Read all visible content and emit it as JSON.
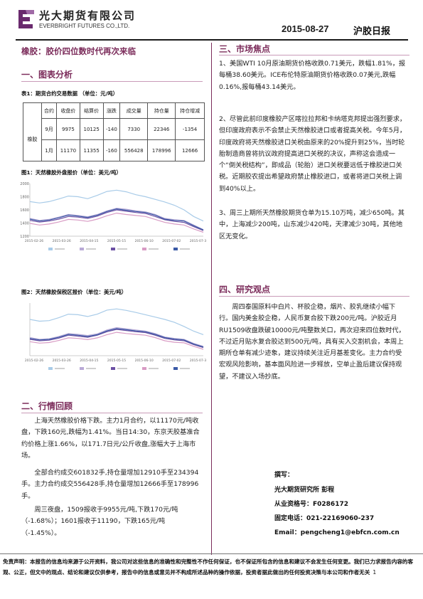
{
  "header": {
    "company_cn": "光大期货有限公司",
    "company_en": "EVERBRIGHT FUTURES CO.,LTD.",
    "date": "2015-08-27",
    "report_title": "沪胶日报"
  },
  "main_title": "橡胶：胶价四位数时代再次来临",
  "sec1": {
    "title": "一、图表分析",
    "table_caption": "表1：期货合约交易数据  （单位：元/吨）",
    "table": {
      "headers": [
        "合约",
        "收盘价",
        "结算价",
        "涨跌",
        "成交量",
        "持仓量",
        "持仓增减"
      ],
      "row_label": "橡胶",
      "rows": [
        [
          "9月",
          "9975",
          "10125",
          "-140",
          "7330",
          "22346",
          "-1354"
        ],
        [
          "1月",
          "11170",
          "11355",
          "-160",
          "556428",
          "178996",
          "12666"
        ]
      ]
    }
  },
  "chart1": {
    "caption": "图1：天然橡胶外盘报价（单位：美元/吨）"
  },
  "chart2": {
    "caption": "图2：天然橡胶保税区报价（单位：美元/吨）"
  },
  "chart_data": [
    {
      "type": "line",
      "y_ticks": [
        "2000",
        "1800",
        "1600",
        "1400",
        "1200"
      ],
      "ylim": [
        1200,
        2000
      ],
      "x_ticks": [
        "2015-02-26",
        "2015-03-26",
        "2015-04-15",
        "2015-05-15",
        "2015-06-10",
        "2015-07-02",
        "2015-07-31"
      ],
      "series": [
        {
          "color": "#a8cbe8",
          "values": [
            1725,
            1705,
            1725,
            1765,
            1810,
            1800,
            1770,
            1820,
            1880,
            1900,
            1875,
            1830,
            1800,
            1760,
            1720,
            1670,
            1600,
            1500,
            1430
          ]
        },
        {
          "color": "#b9a9d6",
          "values": [
            1470,
            1440,
            1455,
            1490,
            1530,
            1515,
            1495,
            1530,
            1585,
            1625,
            1610,
            1585,
            1570,
            1530,
            1470,
            1450,
            1440,
            1370,
            1300
          ]
        },
        {
          "color": "#6b4fa3",
          "values": [
            1440,
            1415,
            1430,
            1460,
            1500,
            1490,
            1470,
            1505,
            1560,
            1600,
            1580,
            1560,
            1545,
            1500,
            1450,
            1425,
            1410,
            1345,
            1285
          ]
        },
        {
          "color": "#d89bc4",
          "values": [
            1395,
            1370,
            1385,
            1415,
            1455,
            1445,
            1425,
            1460,
            1510,
            1550,
            1530,
            1515,
            1500,
            1455,
            1410,
            1385,
            1370,
            1310,
            1260
          ]
        },
        {
          "color": "#3b5aa6",
          "values": [
            1460,
            1430,
            1445,
            1480,
            1520,
            1505,
            1485,
            1520,
            1575,
            1615,
            1595,
            1575,
            1560,
            1520,
            1460,
            1440,
            1430,
            1360,
            1295
          ]
        }
      ]
    },
    {
      "type": "line",
      "y_ticks": [
        "",
        "",
        "",
        "",
        "",
        ""
      ],
      "ylim": [
        1200,
        2100
      ],
      "x_ticks": [
        "2015-02-26",
        "2015-03-26",
        "2015-04-15",
        "2015-05-15",
        "2015-06-10",
        "2015-07-02",
        "2015-07-31"
      ],
      "series": [
        {
          "color": "#a8cbe8",
          "values": [
            1820,
            1790,
            1800,
            1850,
            1910,
            1900,
            1870,
            1910,
            1980,
            2000,
            1975,
            1940,
            1900,
            1860,
            1820,
            1770,
            1700,
            1620,
            1560
          ]
        },
        {
          "color": "#b9a9d6",
          "values": [
            1510,
            1480,
            1490,
            1530,
            1580,
            1565,
            1545,
            1575,
            1640,
            1680,
            1660,
            1640,
            1620,
            1580,
            1520,
            1495,
            1480,
            1410,
            1360
          ]
        },
        {
          "color": "#6b4fa3",
          "values": [
            1480,
            1455,
            1465,
            1500,
            1550,
            1535,
            1515,
            1550,
            1610,
            1650,
            1630,
            1610,
            1595,
            1550,
            1495,
            1470,
            1455,
            1390,
            1340
          ]
        },
        {
          "color": "#d89bc4",
          "values": [
            1440,
            1415,
            1425,
            1460,
            1505,
            1495,
            1475,
            1505,
            1560,
            1600,
            1580,
            1565,
            1550,
            1510,
            1455,
            1430,
            1420,
            1360,
            1310
          ]
        },
        {
          "color": "#3b5aa6",
          "values": [
            1495,
            1470,
            1480,
            1515,
            1565,
            1550,
            1530,
            1560,
            1625,
            1665,
            1645,
            1625,
            1610,
            1565,
            1510,
            1485,
            1470,
            1400,
            1350
          ]
        }
      ]
    }
  ],
  "sec2": {
    "title": "二、行情回顾",
    "paras": [
      "上海天然橡胶价格下跌。主力1月合约，以11170元/吨收盘，下跌160元,跌幅为1.41%。当日14:30，东京天胶基准合约价格上涨1.66%，以171.7日元/公斤收盘,涨幅大于上海市场。",
      "全部合约成交601832手,持仓量增加12910手至234394手。主力合约成交556428手,持仓量增加12666手至178996手。",
      "周三夜盘，1509报收于9955元/吨,下跌170元/吨（-1.68%）；1601报收于11190，下跌165元/吨（-1.45%）。"
    ]
  },
  "sec3": {
    "title": "三、市场焦点",
    "paras": [
      "1、美国WTI 10月原油期货价格收跌0.71美元，跌幅1.81%，报每桶38.60美元。ICE布伦特原油期货价格收跌0.07美元,跌幅0.16%,报每桶43.14美元。",
      "2、尽管此前印度橡胶产区喀拉拉邦和卡纳塔克邦提出强烈要求，但印度政府表示不会禁止天然橡胶进口或者提高关税。今年5月，印度政府将天然橡胶进口关税由原来的20%提升到25%，当时轮胎制造商曾将抗议政府提高进口关税的决议，声称这会造成一个“倒关税结构”，即成品（轮胎）进口关税要远低于橡胶进口关税。近期胶农提出希望政府禁止橡胶进口，或者将进口关税上调到40%以上。",
      "3、周三上期所天然橡胶期货仓单为15.10万吨，减少650吨。其中，上海减少200吨，山东减少420吨，天津减少30吨，其他地区无变化。"
    ]
  },
  "sec4": {
    "title": "四、研究观点",
    "paras": [
      "周四泰国原料中白片、杯胶企稳，烟片、胶乳继续小幅下行。国内美金胶企稳，人民币复合胶下跌200元/吨。沪胶近月RU1509收盘跌破10000元/吨整数关口，再次迎来四位数时代，不过近月贴水复合胶达到500元/吨，具有买入交割机会，本周上期所仓单有减少迹象，建议持续关注近月基差变化。主力合约受宏观风险影响，基本面风险进一步释放，空单止盈后建议保持观望，不建议入场抄底。"
    ]
  },
  "author": {
    "label": "撰写：",
    "line1": "光大期货研究所  彭程",
    "line2": "从业资格号：F0286172",
    "line3": "固定电话：021-22169060-237",
    "line4": "Email：pengcheng1@ebfcn.com.cn"
  },
  "disclaimer": "免责声明：本报告的信息均来源于公开资料，我公司对这些信息的准确性和完整性不作任何保证，也不保证所包含的信息和建议不会发生任何变更。我们已力求报告内容的客观、公正，但文中的观点、结论和建议仅供参考，报告中的信息或意见并不构成所述品种的操作依据，投资者据此做出的任何投资决策与本公司和作者无关",
  "page_number": "1"
}
